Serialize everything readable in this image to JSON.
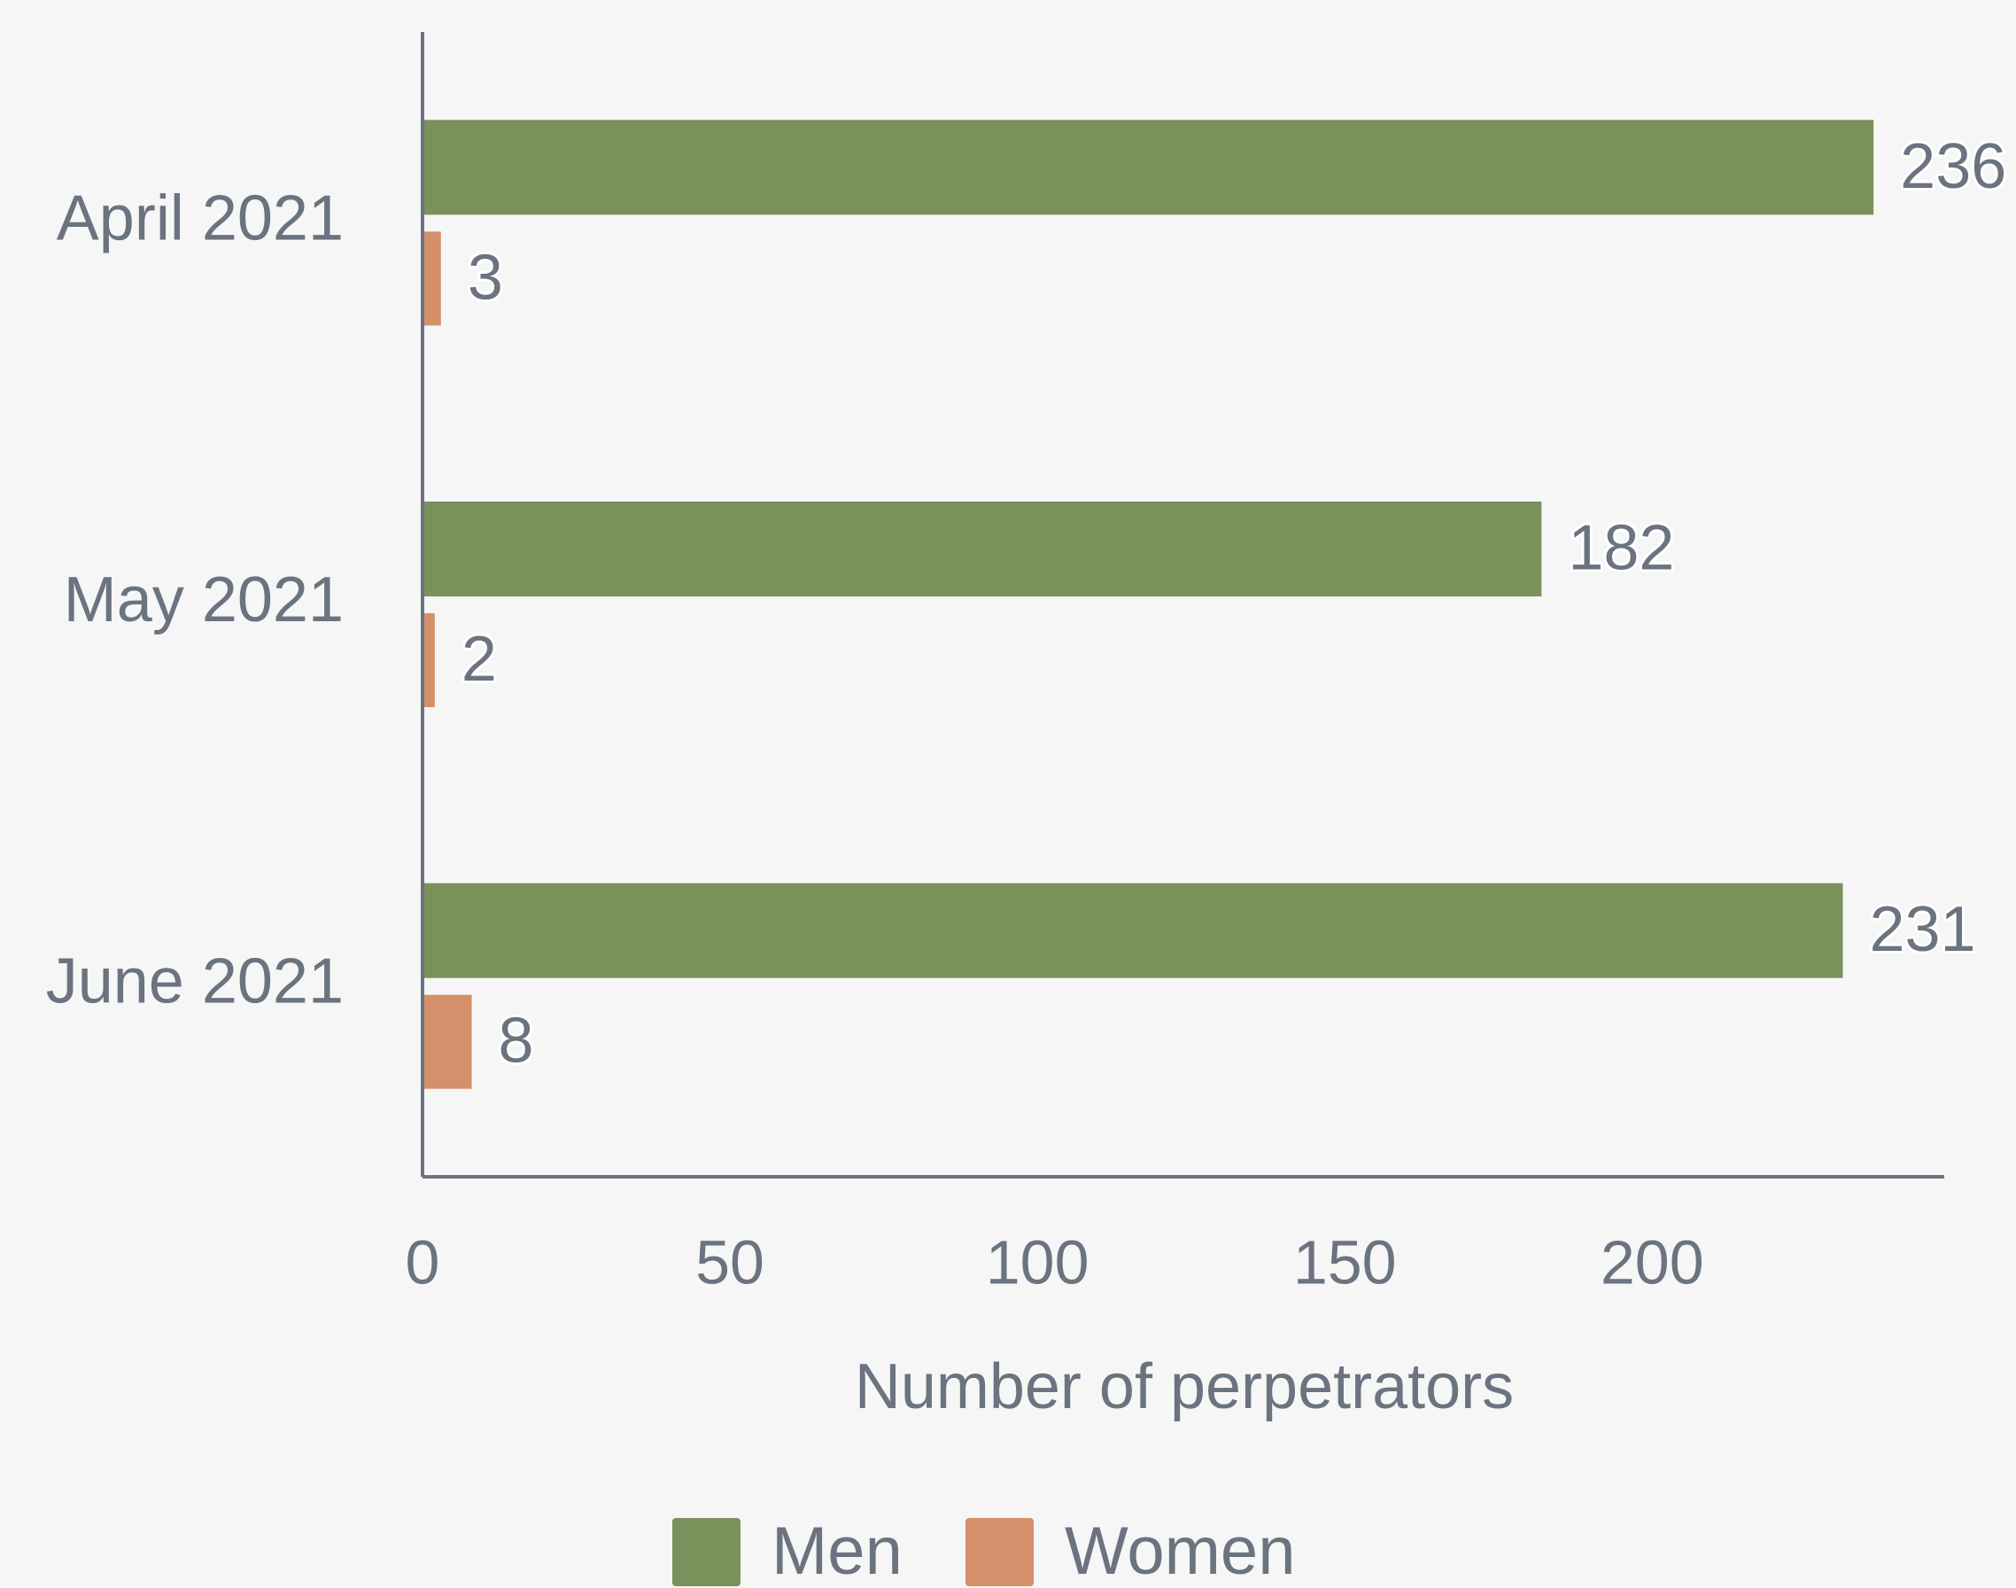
{
  "chart_data": {
    "type": "bar",
    "orientation": "horizontal",
    "categories": [
      "April 2021",
      "May 2021",
      "June 2021"
    ],
    "series": [
      {
        "name": "Men",
        "color": "#7a915b",
        "values": [
          236,
          182,
          231
        ]
      },
      {
        "name": "Women",
        "color": "#d4906b",
        "values": [
          3,
          2,
          8
        ]
      }
    ],
    "x_label": "Number of perpetrators",
    "xlim": [
      0,
      247.5
    ],
    "xticks": [
      0,
      50,
      100,
      150,
      200
    ],
    "grid": false,
    "legend": "bottom"
  }
}
